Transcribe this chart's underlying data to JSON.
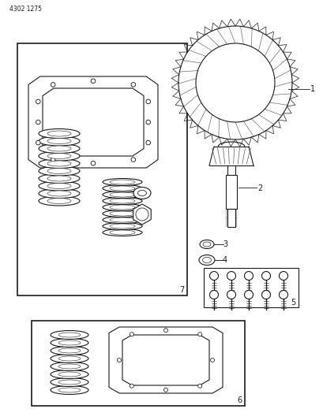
{
  "background_color": "#ffffff",
  "page_id": "4302 1275",
  "fig_width": 4.1,
  "fig_height": 5.33,
  "dpi": 100,
  "line_color": "#1a1a1a",
  "label_color": "#1a1a1a"
}
